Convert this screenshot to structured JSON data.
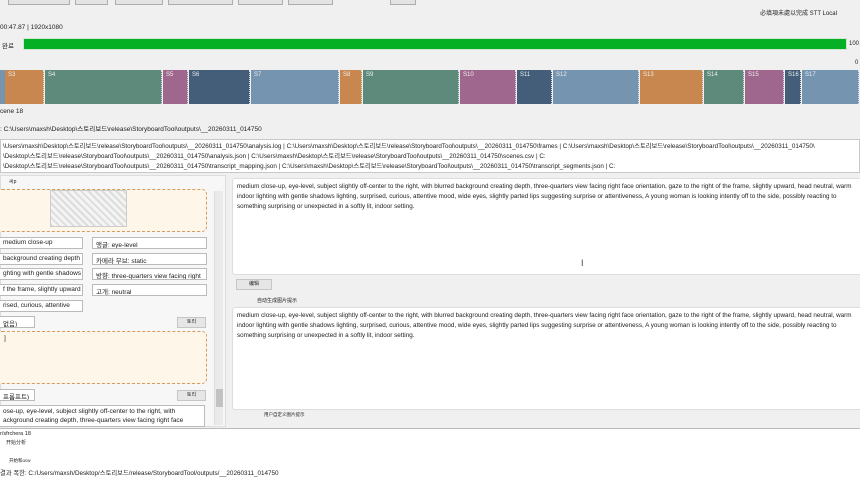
{
  "toolbar": {
    "buttons": [
      "",
      "",
      "",
      "",
      "",
      "",
      "",
      ""
    ],
    "checkbox_label": "",
    "right_status": "必填項未處以完成 STT Local"
  },
  "video_info": "00:47.87 | 1920x1080",
  "progress": {
    "label": "완료",
    "value_percent": 100,
    "value_text": "100",
    "color": "#06b025"
  },
  "timeline": {
    "zero_label": "0",
    "segments": [
      {
        "label": "",
        "color": "#7494b0"
      },
      {
        "label": "S3",
        "color": "#c8874e"
      },
      {
        "label": "S4",
        "color": "#5e8a7c"
      },
      {
        "label": "S5",
        "color": "#a0678e"
      },
      {
        "label": "S6",
        "color": "#445e7a"
      },
      {
        "label": "S7",
        "color": "#7494b0"
      },
      {
        "label": "S8",
        "color": "#c8874e"
      },
      {
        "label": "S9",
        "color": "#5e8a7c"
      },
      {
        "label": "S10",
        "color": "#a0678e"
      },
      {
        "label": "S11",
        "color": "#445e7a"
      },
      {
        "label": "S12",
        "color": "#7494b0"
      },
      {
        "label": "S13",
        "color": "#c8874e"
      },
      {
        "label": "S14",
        "color": "#5e8a7c"
      },
      {
        "label": "S15",
        "color": "#a0678e"
      },
      {
        "label": "S16",
        "color": "#445e7a"
      },
      {
        "label": "S17",
        "color": "#7494b0"
      }
    ]
  },
  "scene_label": "cene 18",
  "output_path": ": C:\\Users\\maxsh\\Desktop\\스토리보드\\release\\StoryboardTool\\outputs\\__20260311_014750",
  "files": [
    "\\Users\\maxsh\\Desktop\\스토리보드\\release\\StoryboardTool\\outputs\\__20260311_014750\\analysis.log | C:\\Users\\maxsh\\Desktop\\스토리보드\\release\\StoryboardTool\\outputs\\__20260311_014750\\frames | C:\\Users\\maxsh\\Desktop\\스토리보드\\release\\StoryboardTool\\outputs\\__20260311_014750\\",
    "\\Desktop\\스토리보드\\release\\StoryboardTool\\outputs\\__20260311_014750\\analysis.json | C:\\Users\\maxsh\\Desktop\\스토리보드\\release\\StoryboardTool\\outputs\\__20260311_014750\\scenes.csv | C:",
    "\\Desktop\\스토리보드\\release\\StoryboardTool\\outputs\\__20260311_014750\\transcript_mapping.json | C:\\Users\\maxsh\\Desktop\\스토리보드\\release\\StoryboardTool\\outputs\\__20260311_014750\\transcript_segments.json | C:"
  ],
  "left": {
    "tab": "씨p",
    "fields_left": [
      "medium close-up",
      "background creating depth",
      "ghting with gentle shadows",
      "f the frame, slightly upward",
      "rised, curious, attentive"
    ],
    "fields_right": [
      "앵글: eye-level",
      "카메라 무브: static",
      "방향: three-quarters view facing right",
      "고개: neutral"
    ],
    "section1_label": "없음)",
    "section1_button": "토리",
    "card_text": "]",
    "section2_label": "프롬프트)",
    "section2_button": "토리",
    "prompt_text": "ose-up, eye-level, subject slightly off-center to the right, with ackground creating depth, three-quarters view facing right face"
  },
  "right": {
    "description": "medium close-up, eye-level, subject slightly off-center to the right, with blurred background creating depth, three-quarters view facing right face orientation, gaze to the right of the frame, slightly upward, head neutral, warm indoor lighting with gentle shadows lighting, surprised, curious, attentive mood, wide eyes, slightly parted lips suggesting surprise or attentiveness, A young woman is looking intently off to the side, possibly reacting to something surprising or unexpected in a softly lit, indoor setting.",
    "edit_button": "编辑",
    "auto_prompt_label": "自动生成图片提示",
    "auto_prompt": "medium close-up, eye-level, subject slightly off-center to the right, with blurred background creating depth, three-quarters view facing right face orientation, gaze to the right of the frame, slightly upward, head neutral, warm indoor lighting with gentle shadows lighting, surprised, curious, attentive mood, wide eyes, slightly parted lips suggesting surprise or attentiveness, A young woman is looking intently off to the side, possibly reacting to something surprising or unexpected in a softly lit, indoor setting.",
    "custom_prompt_label": "用户自定义图片提示"
  },
  "log": [
    "r/sfrchera 18",
    "开始分析",
    "开始和ocw",
    "결과 폭한: C:/Users/maxsh/Desktop/스토리보드/release/StoryboardTool/outputs/__20260311_014750"
  ]
}
